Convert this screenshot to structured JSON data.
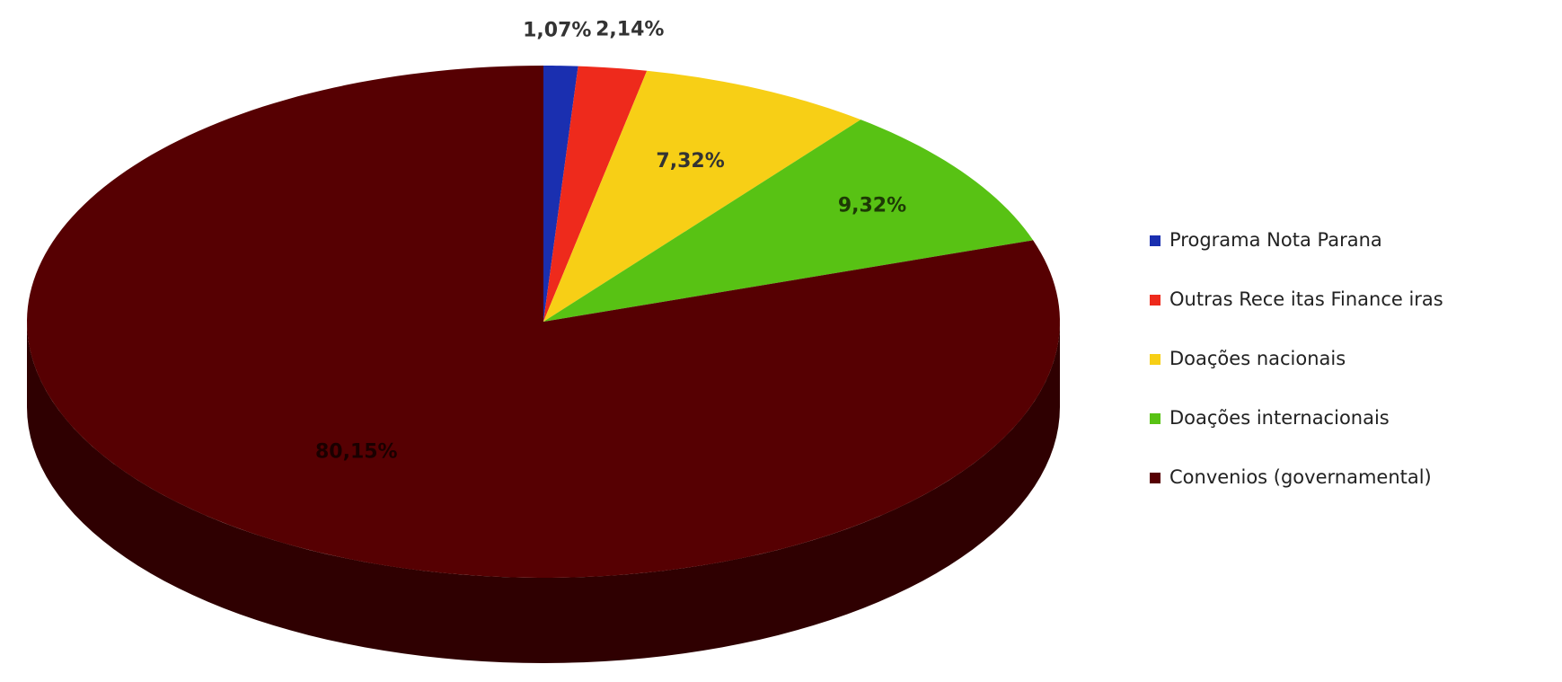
{
  "chart_data": {
    "type": "pie",
    "style": "3d",
    "legend_position": "right",
    "slices": [
      {
        "label": "Programa Nota Parana",
        "value": 1.07,
        "value_label": "1,07%",
        "color": "#1a2fb0"
      },
      {
        "label": "Outras Rece itas Finance iras",
        "value": 2.14,
        "value_label": "2,14%",
        "color": "#ee2a1c"
      },
      {
        "label": "Doações nacionais",
        "value": 7.32,
        "value_label": "7,32%",
        "color": "#f7cf16"
      },
      {
        "label": "Doações internacionais",
        "value": 9.32,
        "value_label": "9,32%",
        "color": "#58c214"
      },
      {
        "label": "Convenios (governamental)",
        "value": 80.15,
        "value_label": "80,15%",
        "color": "#560002"
      }
    ]
  }
}
